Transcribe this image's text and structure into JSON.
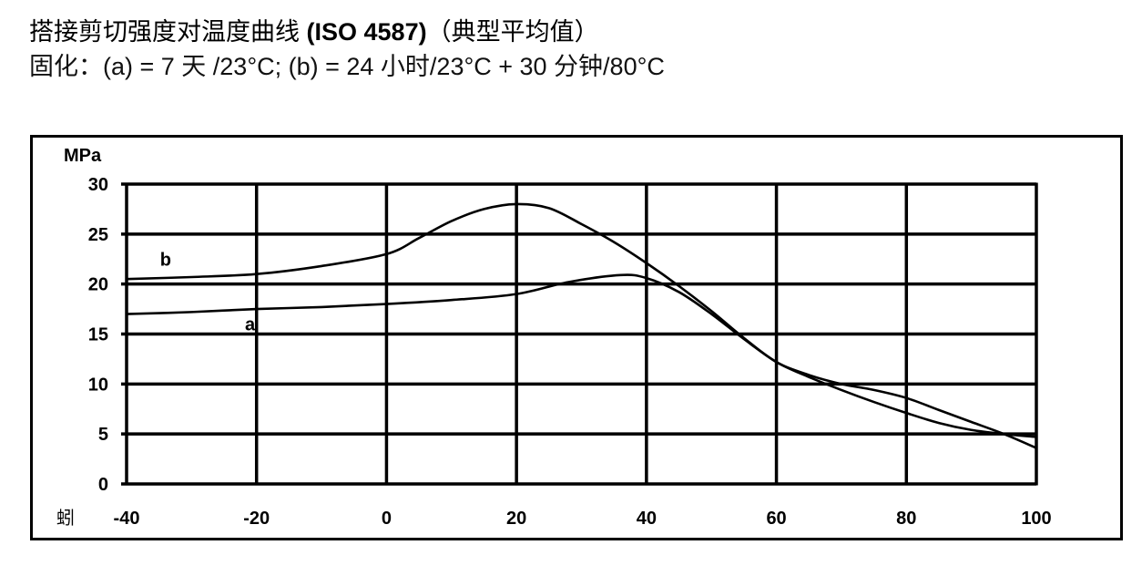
{
  "header": {
    "title_cn": "搭接剪切强度对温度曲线",
    "title_std": "(ISO 4587)",
    "title_suffix": "（典型平均值）",
    "subtitle": "固化：(a) = 7 天 /23°C; (b) = 24 小时/23°C + 30 分钟/80°C"
  },
  "chart_data": {
    "type": "line",
    "title": "搭接剪切强度对温度曲线 (ISO 4587)（典型平均值）",
    "subtitle": "固化：(a) = 7 天 /23°C; (b) = 24 小时/23°C + 30 分钟/80°C",
    "xlabel": "蚓",
    "ylabel": "MPa",
    "xlim": [
      -40,
      100
    ],
    "ylim": [
      0,
      30
    ],
    "x_ticks": [
      -40,
      -20,
      0,
      20,
      40,
      60,
      80,
      100
    ],
    "y_ticks": [
      0,
      5,
      10,
      15,
      20,
      25,
      30
    ],
    "grid": true,
    "legend": "inline labels",
    "series": [
      {
        "name": "a",
        "label_pos": [
          -21,
          16
        ],
        "x": [
          -40,
          -30,
          -20,
          -10,
          0,
          10,
          20,
          28,
          36,
          40,
          45,
          50,
          55,
          60,
          65,
          70,
          75,
          80,
          85,
          90,
          95,
          100
        ],
        "values": [
          17.0,
          17.2,
          17.5,
          17.7,
          18.0,
          18.4,
          19.0,
          20.2,
          20.9,
          20.6,
          19.2,
          17.0,
          14.5,
          12.2,
          10.7,
          9.4,
          8.2,
          7.1,
          6.1,
          5.4,
          5.0,
          4.7
        ]
      },
      {
        "name": "b",
        "label_pos": [
          -34,
          22.5
        ],
        "x": [
          -40,
          -30,
          -20,
          -10,
          0,
          5,
          10,
          15,
          20,
          25,
          30,
          35,
          40,
          45,
          50,
          55,
          60,
          65,
          70,
          75,
          80,
          85,
          90,
          95,
          100
        ],
        "values": [
          20.5,
          20.7,
          21.0,
          21.8,
          23.0,
          24.6,
          26.3,
          27.5,
          28.0,
          27.6,
          26.0,
          24.2,
          22.1,
          19.8,
          17.3,
          14.6,
          12.2,
          10.9,
          10.0,
          9.4,
          8.6,
          7.4,
          6.2,
          5.0,
          3.6
        ]
      }
    ]
  },
  "axis": {
    "y_unit": "MPa",
    "x_unit": "蚓",
    "x_tick_labels": [
      "-40",
      "-20",
      "0",
      "20",
      "40",
      "60",
      "80",
      "100"
    ],
    "y_tick_labels": [
      "0",
      "5",
      "10",
      "15",
      "20",
      "25",
      "30"
    ]
  }
}
